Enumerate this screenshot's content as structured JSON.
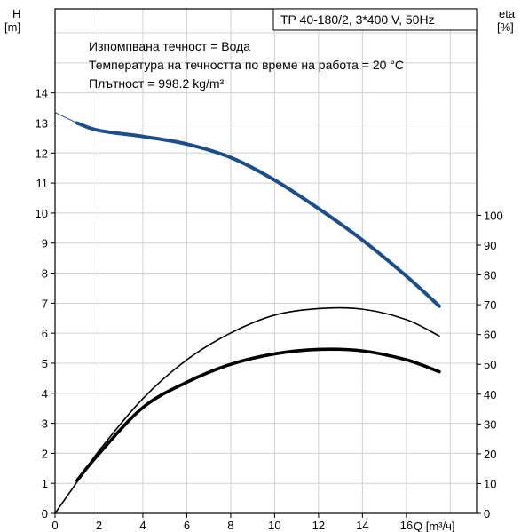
{
  "chart_data": {
    "type": "line",
    "title": "TP 40-180/2, 3*400 V, 50Hz",
    "annotations": [
      "Изпомпвана течност = Вода",
      "Температура на течността по време на работа = 20 °C",
      "Плътност = 998.2 kg/m³"
    ],
    "xlabel": "Q [m³/ч]",
    "ylabel_left": [
      "H",
      "[m]"
    ],
    "ylabel_right": [
      "eta",
      "[%]"
    ],
    "xlim": [
      0,
      19.2
    ],
    "ylim_left": [
      0,
      16.8
    ],
    "ylim_right": [
      0,
      100
    ],
    "x_ticks": [
      "0",
      "2",
      "4",
      "6",
      "8",
      "10",
      "12",
      "14",
      "16"
    ],
    "y_ticks_left": [
      "0",
      "1",
      "2",
      "3",
      "4",
      "5",
      "6",
      "7",
      "8",
      "9",
      "10",
      "11",
      "12",
      "13",
      "14"
    ],
    "y_ticks_right": [
      "0",
      "10",
      "20",
      "30",
      "40",
      "50",
      "60",
      "70",
      "80",
      "90",
      "100"
    ],
    "grid": true,
    "series": [
      {
        "axis": "left",
        "color": "#1a4f8a",
        "x": [
          0,
          1,
          2,
          4,
          6,
          8,
          10,
          12,
          14,
          16,
          17.5
        ],
        "y": [
          13.35,
          13.0,
          12.75,
          12.55,
          12.3,
          11.85,
          11.1,
          10.15,
          9.1,
          7.9,
          6.9
        ]
      },
      {
        "axis": "right",
        "color": "#000000",
        "x": [
          0,
          1,
          2,
          4,
          6,
          8,
          10,
          12,
          14,
          16,
          17.5
        ],
        "y": [
          0,
          10.5,
          21,
          38.5,
          51.5,
          60.5,
          66.5,
          68.7,
          68.5,
          65,
          59.5
        ]
      },
      {
        "axis": "right",
        "color": "#000000",
        "x": [
          1,
          2,
          4,
          6,
          8,
          10,
          12,
          14,
          16,
          17.5
        ],
        "y": [
          11,
          20,
          35.5,
          44,
          50,
          53.5,
          55,
          54.5,
          51.5,
          47.5
        ]
      }
    ]
  }
}
